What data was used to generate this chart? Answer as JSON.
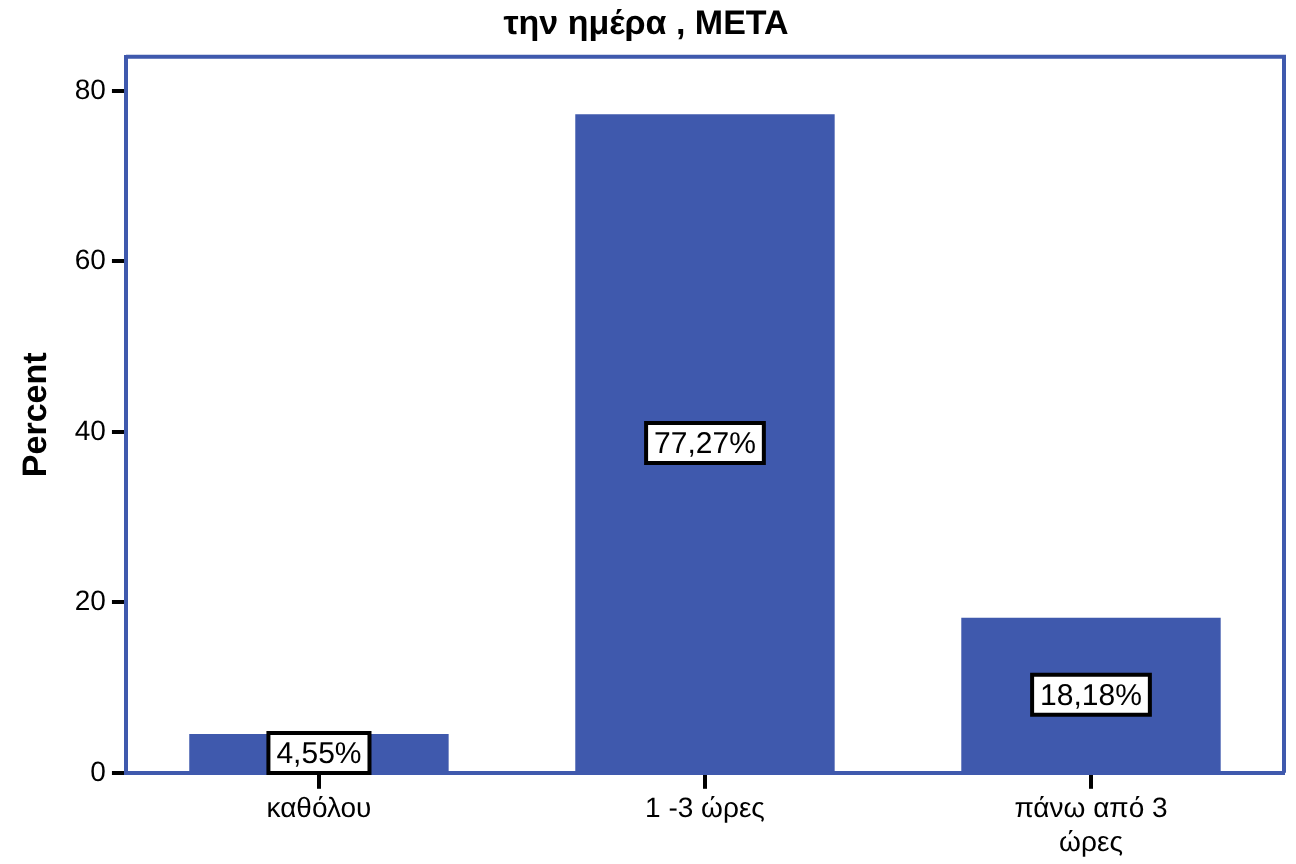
{
  "chart_data": {
    "type": "bar",
    "title": "την ημέρα , ΜΕΤΑ",
    "ylabel": "Percent",
    "categories": [
      "καθόλου",
      "1 -3 ώρες",
      "πάνω από 3 ώρες"
    ],
    "values": [
      4.55,
      77.27,
      18.18
    ],
    "value_labels": [
      "4,55%",
      "77,27%",
      "18,18%"
    ],
    "color": "#3f59ad",
    "ylim": [
      0,
      84
    ],
    "yticks": [
      0,
      20,
      40,
      60,
      80
    ],
    "grid": false,
    "legend": false
  }
}
